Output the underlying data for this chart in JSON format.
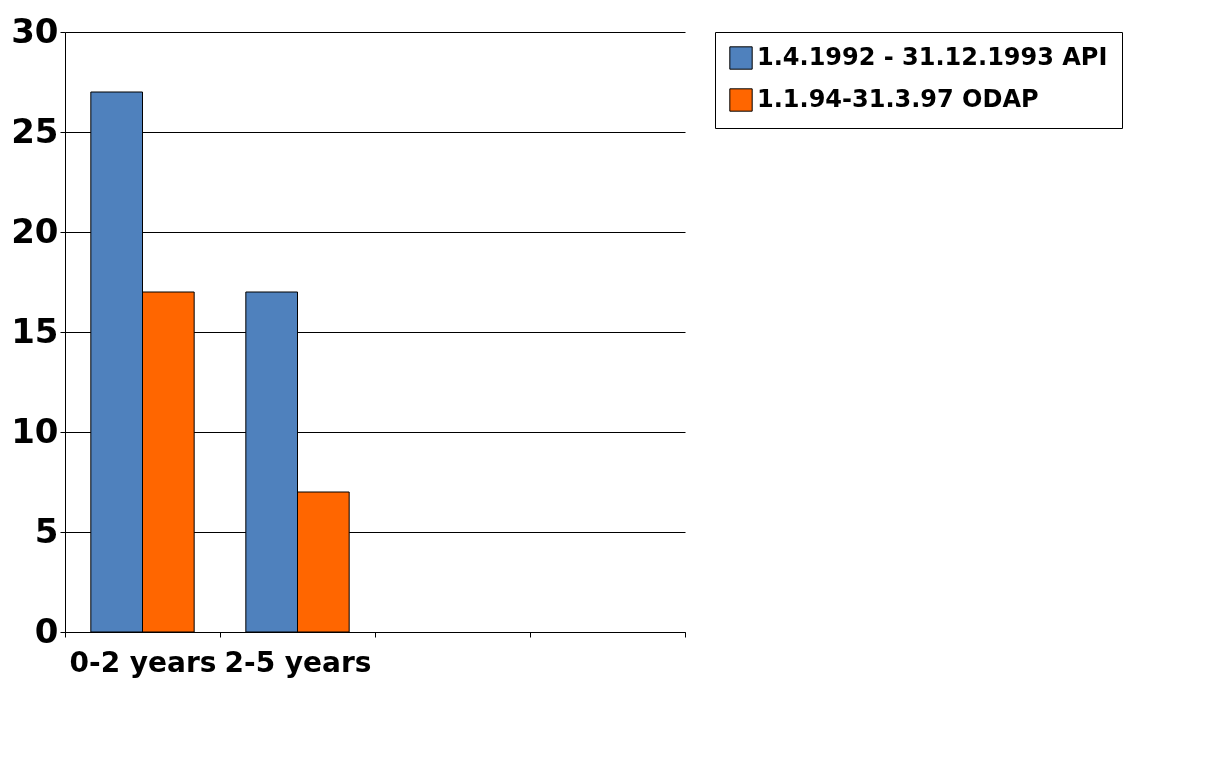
{
  "chart_data": {
    "type": "bar",
    "categories": [
      "0-2 years",
      "2-5 years",
      null,
      null
    ],
    "series": [
      {
        "name": "1.4.1992 - 31.12.1993 API",
        "color": "#4f81bd",
        "values": [
          27,
          17,
          null,
          null
        ]
      },
      {
        "name": "1.1.94-31.3.97 ODAP",
        "color": "#ff6600",
        "values": [
          17,
          7,
          null,
          null
        ]
      }
    ],
    "ylim": [
      0,
      30
    ],
    "yticks": [
      0,
      5,
      10,
      15,
      20,
      25,
      30
    ],
    "grid": "y",
    "legend": "right"
  }
}
